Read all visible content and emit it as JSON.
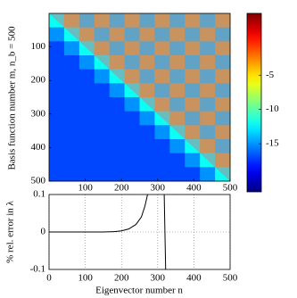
{
  "chart_data": [
    {
      "type": "heatmap",
      "ylabel": "Basis function number m, n_b = 500",
      "colormap": "jet",
      "z": [
        [
          -12,
          -3,
          -14,
          -3,
          -14,
          -3,
          -14,
          -3,
          -14,
          -3,
          -14,
          -3
        ],
        [
          -15,
          -12,
          -3,
          -14,
          -3,
          -14,
          -3,
          -14,
          -3,
          -14,
          -3,
          -14
        ],
        [
          -17,
          -15,
          -12,
          -3,
          -14,
          -3,
          -14,
          -3,
          -14,
          -3,
          -14,
          -3
        ],
        [
          -17,
          -17,
          -15,
          -12,
          -3,
          -14,
          -3,
          -14,
          -3,
          -14,
          -3,
          -14
        ],
        [
          -17,
          -17,
          -17,
          -15,
          -12,
          -3,
          -14,
          -3,
          -14,
          -3,
          -14,
          -3
        ],
        [
          -17,
          -17,
          -17,
          -17,
          -15,
          -12,
          -3,
          -14,
          -3,
          -14,
          -3,
          -14
        ],
        [
          -17,
          -17,
          -17,
          -17,
          -17,
          -15,
          -12,
          -3,
          -14,
          -3,
          -14,
          -3
        ],
        [
          -17,
          -17,
          -17,
          -17,
          -17,
          -17,
          -15,
          -12,
          -3,
          -14,
          -3,
          -14
        ],
        [
          -17,
          -17,
          -17,
          -17,
          -17,
          -17,
          -17,
          -15,
          -12,
          -3,
          -14,
          -3
        ],
        [
          -17,
          -17,
          -17,
          -17,
          -17,
          -17,
          -17,
          -17,
          -15,
          -12,
          -3,
          -14
        ],
        [
          -17,
          -17,
          -17,
          -17,
          -17,
          -17,
          -17,
          -17,
          -17,
          -15,
          -12,
          -3
        ],
        [
          -17,
          -17,
          -17,
          -17,
          -17,
          -17,
          -17,
          -17,
          -17,
          -17,
          -15,
          -12
        ]
      ],
      "xlim": [
        0,
        500
      ],
      "ylim": [
        500,
        0
      ],
      "xticks": [
        100,
        200,
        300,
        400,
        500
      ],
      "yticks": [
        100,
        200,
        300,
        400,
        500
      ],
      "clim": [
        -22,
        4
      ],
      "cticks": [
        -5,
        -10,
        -15
      ]
    },
    {
      "type": "line",
      "xlabel": "Eigenvector number n",
      "ylabel": "% rel. error in λ",
      "x": [
        0,
        100,
        150,
        180,
        200,
        220,
        240,
        255,
        265,
        272,
        295,
        318,
        320,
        322
      ],
      "series": [
        {
          "color": "#000000",
          "values": [
            0,
            0,
            0,
            0.001,
            0.003,
            0.008,
            0.02,
            0.04,
            0.07,
            0.1,
            null,
            0.1,
            0,
            -0.1
          ]
        }
      ],
      "xlim": [
        0,
        500
      ],
      "ylim": [
        -0.1,
        0.1
      ],
      "xticks": [
        0,
        100,
        200,
        300,
        400,
        500
      ],
      "yticks": [
        0.1,
        0,
        -0.1
      ],
      "grid": true
    }
  ]
}
